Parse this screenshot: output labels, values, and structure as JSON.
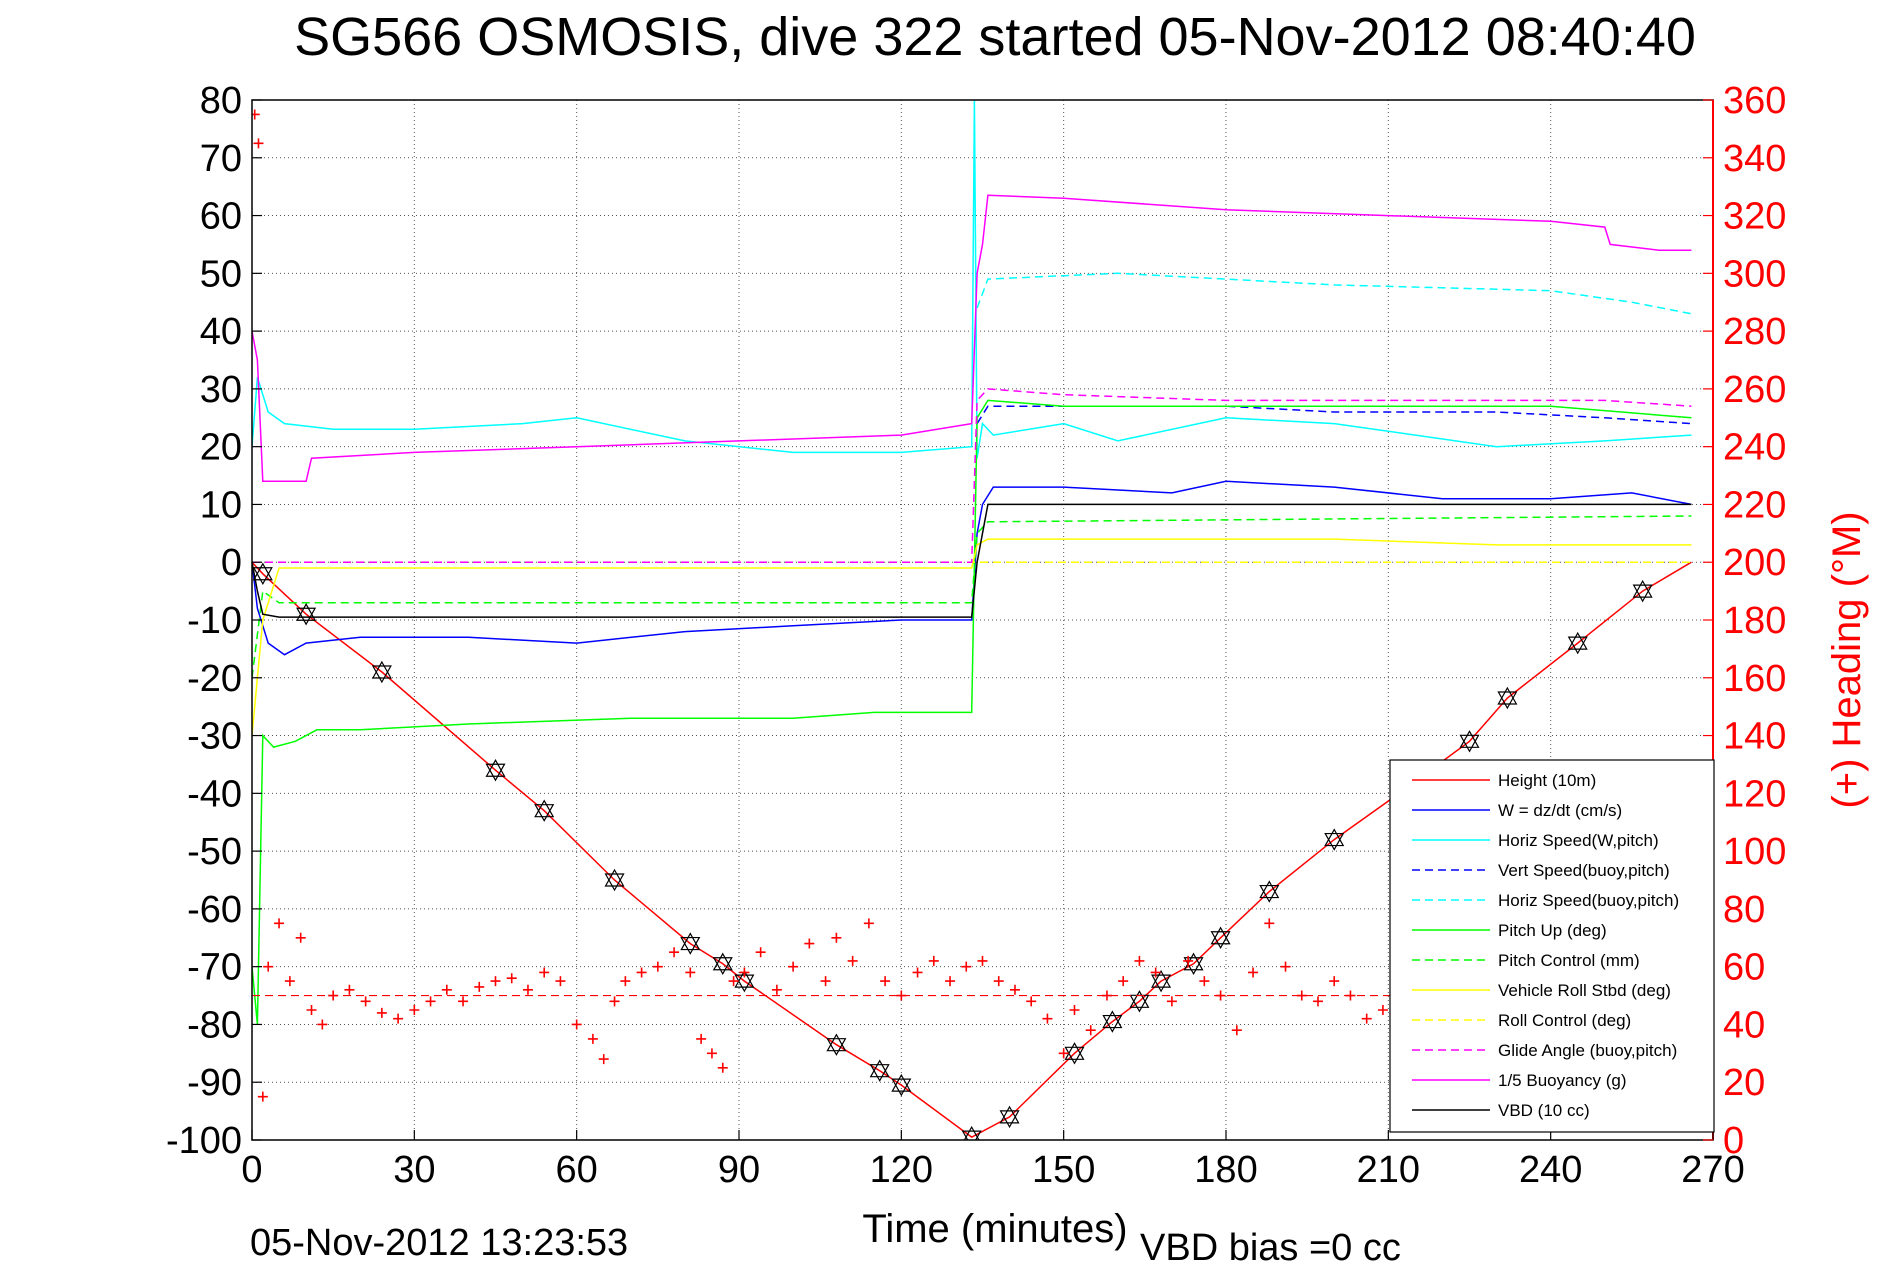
{
  "chart_data": {
    "type": "line",
    "title": "SG566 OSMOSIS, dive 322 started 05-Nov-2012 08:40:40",
    "xlabel": "Time (minutes)",
    "ylabel_right": "(+) Heading (°M)",
    "footer_left": "05-Nov-2012 13:23:53",
    "footer_right": "VBD bias =0 cc",
    "xlim": [
      0,
      270
    ],
    "ylim_left": [
      -100,
      80
    ],
    "ylim_right": [
      0,
      360
    ],
    "x_ticks": [
      0,
      30,
      60,
      90,
      120,
      150,
      180,
      210,
      240,
      270
    ],
    "y_ticks_left": [
      80,
      70,
      60,
      50,
      40,
      30,
      20,
      10,
      0,
      -10,
      -20,
      -30,
      -40,
      -50,
      -60,
      -70,
      -80,
      -90,
      -100
    ],
    "y_ticks_right": [
      360,
      340,
      320,
      300,
      280,
      260,
      240,
      220,
      200,
      180,
      160,
      140,
      120,
      100,
      80,
      60,
      40,
      20,
      0
    ],
    "grid": true,
    "legend_position": "bottom-right",
    "colors": {
      "height": "#ff0000",
      "w": "#0000ff",
      "horiz_speed_w": "#00ffff",
      "vert_speed_buoy": "#0000ff",
      "horiz_speed_buoy": "#00ffff",
      "pitch_up": "#00ff00",
      "pitch_control": "#00ff00",
      "roll": "#ffff00",
      "roll_control": "#ffff00",
      "glide_angle": "#ff00ff",
      "buoyancy": "#ff00ff",
      "vbd": "#000000",
      "heading": "#ff0000"
    },
    "series": [
      {
        "name": "Height (10m)",
        "color": "#ff0000",
        "dash": "solid",
        "x": [
          0,
          2,
          10,
          24,
          45,
          54,
          67,
          81,
          87,
          91,
          108,
          116,
          120,
          133,
          140,
          152,
          159,
          164,
          168,
          174,
          179,
          188,
          200,
          212,
          225,
          232,
          245,
          257,
          266
        ],
        "y": [
          0,
          -2,
          -9,
          -19,
          -36,
          -43,
          -55,
          -66,
          -69.5,
          -72.5,
          -83.5,
          -88,
          -90.5,
          -99.5,
          -96,
          -85,
          -79.5,
          -76,
          -72.5,
          -69.5,
          -65,
          -57,
          -48,
          -40,
          -31,
          -23.5,
          -14,
          -5,
          0
        ]
      },
      {
        "name": "W = dz/dt (cm/s)",
        "color": "#0000ff",
        "dash": "solid",
        "x": [
          0,
          1,
          3,
          6,
          10,
          20,
          40,
          60,
          80,
          100,
          120,
          130,
          133,
          134,
          135,
          137,
          150,
          170,
          180,
          200,
          220,
          240,
          255,
          266
        ],
        "y": [
          0,
          -8,
          -14,
          -16,
          -14,
          -13,
          -13,
          -14,
          -12,
          -11,
          -10,
          -10,
          -10,
          5,
          10,
          13,
          13,
          12,
          14,
          13,
          11,
          11,
          12,
          10
        ]
      },
      {
        "name": "Horiz Speed(W,pitch)",
        "color": "#00ffff",
        "dash": "solid",
        "x": [
          0,
          1,
          3,
          6,
          15,
          30,
          50,
          60,
          80,
          100,
          120,
          133,
          133.5,
          134,
          135,
          137,
          150,
          160,
          180,
          200,
          230,
          250,
          266
        ],
        "y": [
          20,
          32,
          26,
          24,
          23,
          23,
          24,
          25,
          21,
          19,
          19,
          20,
          80,
          18,
          24,
          22,
          24,
          21,
          25,
          24,
          20,
          21,
          22
        ]
      },
      {
        "name": "Vert Speed(buoy,pitch)",
        "color": "#0000ff",
        "dash": "dashed",
        "x": [
          134,
          136,
          150,
          180,
          200,
          230,
          250,
          266
        ],
        "y": [
          24,
          27,
          27,
          27,
          26,
          26,
          25,
          24
        ]
      },
      {
        "name": "Horiz Speed(buoy,pitch)",
        "color": "#00ffff",
        "dash": "dashed",
        "x": [
          134,
          136,
          160,
          200,
          240,
          255,
          266
        ],
        "y": [
          44,
          49,
          50,
          48,
          47,
          45,
          43
        ]
      },
      {
        "name": "Pitch Up (deg)",
        "color": "#00ff00",
        "dash": "solid",
        "x": [
          0,
          1,
          2,
          4,
          8,
          12,
          20,
          40,
          70,
          100,
          115,
          130,
          133,
          134,
          136,
          150,
          180,
          210,
          240,
          266
        ],
        "y": [
          -70,
          -80,
          -30,
          -32,
          -31,
          -29,
          -29,
          -28,
          -27,
          -27,
          -26,
          -26,
          -26,
          25,
          28,
          27,
          27,
          27,
          27,
          25
        ]
      },
      {
        "name": "Pitch Control (mm)",
        "color": "#00ff00",
        "dash": "dashed",
        "x": [
          0,
          2,
          5,
          20,
          60,
          133,
          134,
          136,
          266
        ],
        "y": [
          -20,
          -5,
          -7,
          -7,
          -7,
          -7,
          5,
          7,
          8
        ]
      },
      {
        "name": "Vehicle Roll Stbd (deg)",
        "color": "#ffff00",
        "dash": "solid",
        "x": [
          0,
          2,
          5,
          10,
          20,
          30,
          40,
          60,
          90,
          120,
          133,
          134,
          136,
          150,
          170,
          200,
          230,
          250,
          266
        ],
        "y": [
          -30,
          -10,
          -1,
          -1,
          -1,
          -1,
          -1,
          -1,
          -1,
          -1,
          -1,
          3,
          4,
          4,
          4,
          4,
          3,
          3,
          3
        ]
      },
      {
        "name": "Roll Control (deg)",
        "color": "#ffff00",
        "dash": "dashed",
        "x": [
          0,
          2,
          10,
          133,
          134,
          266
        ],
        "y": [
          0,
          0,
          0,
          0,
          0,
          0
        ]
      },
      {
        "name": "Glide Angle (buoy,pitch)",
        "color": "#ff00ff",
        "dash": "dashed",
        "x": [
          0,
          2,
          10,
          133,
          134,
          136,
          150,
          180,
          220,
          250,
          266
        ],
        "y": [
          0,
          0,
          0,
          0,
          28,
          30,
          29,
          28,
          28,
          28,
          27
        ]
      },
      {
        "name": "1/5 Buoyancy (g)",
        "color": "#ff00ff",
        "dash": "solid",
        "x": [
          0,
          1,
          2,
          5,
          10,
          11,
          30,
          60,
          90,
          120,
          133,
          134,
          135,
          136,
          150,
          180,
          210,
          240,
          250,
          251,
          260,
          266
        ],
        "y": [
          40,
          35,
          14,
          14,
          14,
          18,
          19,
          20,
          21,
          22,
          24,
          50,
          55,
          63.5,
          63,
          61,
          60,
          59,
          58,
          55,
          54,
          54
        ]
      },
      {
        "name": "VBD (10 cc)",
        "color": "#000000",
        "dash": "solid",
        "x": [
          0,
          1,
          2,
          5,
          30,
          60,
          90,
          120,
          133,
          134,
          135,
          136,
          150,
          180,
          210,
          240,
          266
        ],
        "y": [
          0,
          -5,
          -9,
          -9.5,
          -9.5,
          -9.5,
          -9.5,
          -9.5,
          -9.5,
          0,
          5,
          10,
          10,
          10,
          10,
          10,
          10
        ]
      }
    ],
    "heading_series": {
      "name": "(+) Heading (°M)",
      "color": "#ff0000",
      "marker": "+",
      "x": [
        0.5,
        1.2,
        2,
        3,
        5,
        7,
        9,
        11,
        13,
        15,
        18,
        21,
        24,
        27,
        30,
        33,
        36,
        39,
        42,
        45,
        48,
        51,
        54,
        57,
        60,
        63,
        65,
        67,
        69,
        72,
        75,
        78,
        81,
        83,
        85,
        87,
        89,
        91,
        94,
        97,
        100,
        103,
        106,
        108,
        111,
        114,
        117,
        120,
        123,
        126,
        129,
        132,
        135,
        138,
        141,
        144,
        147,
        150,
        152,
        155,
        158,
        161,
        164,
        167,
        170,
        173,
        176,
        179,
        182,
        185,
        188,
        191,
        194,
        197,
        200,
        203,
        206,
        209
      ],
      "y": [
        355,
        345,
        15,
        60,
        75,
        55,
        70,
        45,
        40,
        50,
        52,
        48,
        44,
        42,
        45,
        48,
        52,
        48,
        53,
        55,
        56,
        52,
        58,
        55,
        40,
        35,
        28,
        48,
        55,
        58,
        60,
        65,
        58,
        35,
        30,
        25,
        55,
        58,
        65,
        52,
        60,
        68,
        55,
        70,
        62,
        75,
        55,
        50,
        58,
        62,
        55,
        60,
        62,
        55,
        52,
        48,
        42,
        30,
        45,
        38,
        50,
        55,
        62,
        58,
        48,
        62,
        55,
        50,
        38,
        58,
        75,
        60,
        50,
        48,
        55,
        50,
        42,
        45
      ]
    },
    "heading_target": 50,
    "legend_entries": [
      {
        "label": "Height (10m)",
        "color": "#ff0000",
        "dash": "solid"
      },
      {
        "label": "W = dz/dt (cm/s)",
        "color": "#0000ff",
        "dash": "solid"
      },
      {
        "label": "Horiz Speed(W,pitch)",
        "color": "#00ffff",
        "dash": "solid"
      },
      {
        "label": "Vert Speed(buoy,pitch)",
        "color": "#0000ff",
        "dash": "dashed"
      },
      {
        "label": "Horiz Speed(buoy,pitch)",
        "color": "#00ffff",
        "dash": "dashed"
      },
      {
        "label": "Pitch Up (deg)",
        "color": "#00ff00",
        "dash": "solid"
      },
      {
        "label": "Pitch Control (mm)",
        "color": "#00ff00",
        "dash": "dashed"
      },
      {
        "label": "Vehicle Roll Stbd (deg)",
        "color": "#ffff00",
        "dash": "solid"
      },
      {
        "label": "Roll Control (deg)",
        "color": "#ffff00",
        "dash": "dashed"
      },
      {
        "label": "Glide Angle (buoy,pitch)",
        "color": "#ff00ff",
        "dash": "dashed"
      },
      {
        "label": "1/5 Buoyancy (g)",
        "color": "#ff00ff",
        "dash": "solid"
      },
      {
        "label": "VBD (10 cc)",
        "color": "#000000",
        "dash": "solid"
      }
    ]
  }
}
